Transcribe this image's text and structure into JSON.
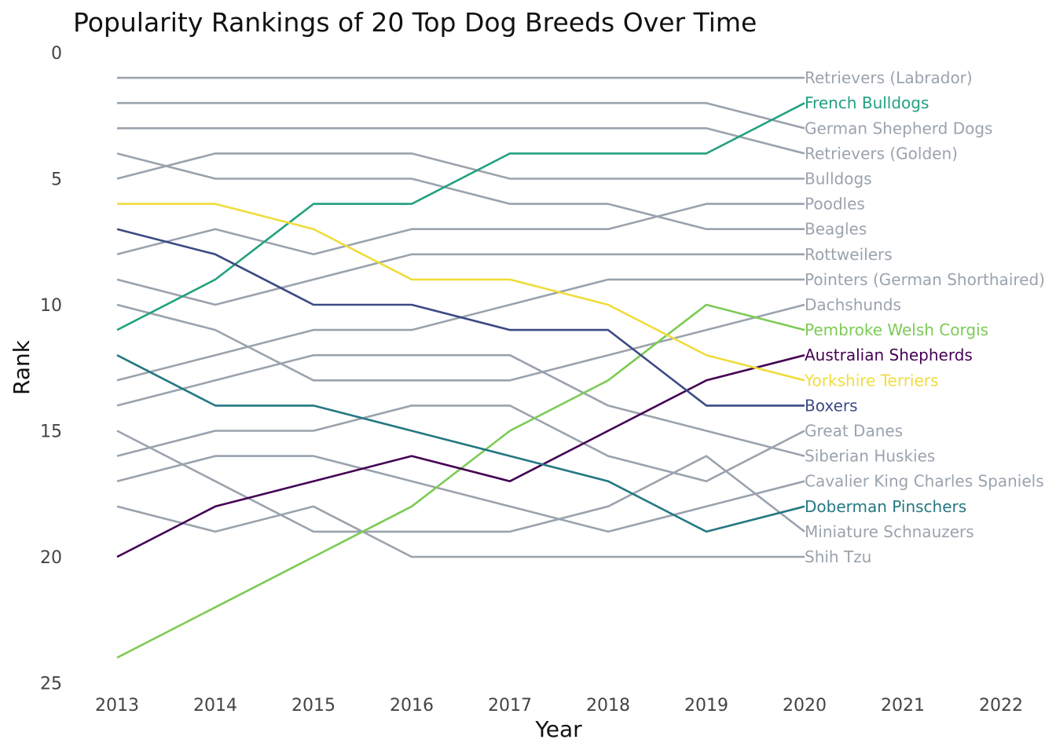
{
  "chart_data": {
    "type": "line",
    "title": "Popularity Rankings of 20 Top Dog Breeds Over Time",
    "xlabel": "Year",
    "ylabel": "Rank",
    "x": [
      2013,
      2014,
      2015,
      2016,
      2017,
      2018,
      2019,
      2020
    ],
    "x_ticks": [
      "2013",
      "2014",
      "2015",
      "2016",
      "2017",
      "2018",
      "2019",
      "2020",
      "2021",
      "2022"
    ],
    "y_ticks": [
      "0",
      "5",
      "10",
      "15",
      "20",
      "25"
    ],
    "xlim": [
      2013,
      2022
    ],
    "ylim": [
      0,
      25
    ],
    "y_reversed": true,
    "grid": false,
    "legend": "direct labels at right end of each line",
    "muted_color": "#9aa3ad",
    "series": [
      {
        "name": "Retrievers (Labrador)",
        "values": [
          1,
          1,
          1,
          1,
          1,
          1,
          1,
          1
        ],
        "color": "#9aa3ad",
        "highlight": false
      },
      {
        "name": "French Bulldogs",
        "values": [
          11,
          9,
          6,
          6,
          4,
          4,
          4,
          2
        ],
        "color": "#22a07f",
        "highlight": true
      },
      {
        "name": "German Shepherd Dogs",
        "values": [
          2,
          2,
          2,
          2,
          2,
          2,
          2,
          3
        ],
        "color": "#9aa3ad",
        "highlight": false
      },
      {
        "name": "Retrievers (Golden)",
        "values": [
          3,
          3,
          3,
          3,
          3,
          3,
          3,
          4
        ],
        "color": "#9aa3ad",
        "highlight": false
      },
      {
        "name": "Bulldogs",
        "values": [
          5,
          4,
          4,
          4,
          5,
          5,
          5,
          5
        ],
        "color": "#9aa3ad",
        "highlight": false
      },
      {
        "name": "Poodles",
        "values": [
          8,
          7,
          8,
          7,
          7,
          7,
          6,
          6
        ],
        "color": "#9aa3ad",
        "highlight": false
      },
      {
        "name": "Beagles",
        "values": [
          4,
          5,
          5,
          5,
          6,
          6,
          7,
          7
        ],
        "color": "#9aa3ad",
        "highlight": false
      },
      {
        "name": "Rottweilers",
        "values": [
          9,
          10,
          9,
          8,
          8,
          8,
          8,
          8
        ],
        "color": "#9aa3ad",
        "highlight": false
      },
      {
        "name": "Pointers (German Shorthaired)",
        "values": [
          13,
          12,
          11,
          11,
          10,
          9,
          9,
          9
        ],
        "color": "#9aa3ad",
        "highlight": false
      },
      {
        "name": "Dachshunds",
        "values": [
          10,
          11,
          13,
          13,
          13,
          12,
          11,
          10
        ],
        "color": "#9aa3ad",
        "highlight": false
      },
      {
        "name": "Pembroke Welsh Corgis",
        "values": [
          24,
          22,
          20,
          18,
          15,
          13,
          10,
          11
        ],
        "color": "#7ccb55",
        "highlight": true
      },
      {
        "name": "Australian Shepherds",
        "values": [
          20,
          18,
          17,
          16,
          17,
          15,
          13,
          12
        ],
        "color": "#440154",
        "highlight": true
      },
      {
        "name": "Yorkshire Terriers",
        "values": [
          6,
          6,
          7,
          9,
          9,
          10,
          12,
          13
        ],
        "color": "#f0dc3a",
        "highlight": true
      },
      {
        "name": "Boxers",
        "values": [
          7,
          8,
          10,
          10,
          11,
          11,
          14,
          14
        ],
        "color": "#3b4a83",
        "highlight": true
      },
      {
        "name": "Great Danes",
        "values": [
          16,
          15,
          15,
          14,
          14,
          16,
          17,
          15
        ],
        "color": "#9aa3ad",
        "highlight": false
      },
      {
        "name": "Siberian Huskies",
        "values": [
          14,
          13,
          12,
          12,
          12,
          14,
          15,
          16
        ],
        "color": "#9aa3ad",
        "highlight": false
      },
      {
        "name": "Cavalier King Charles Spaniels",
        "values": [
          17,
          16,
          16,
          17,
          18,
          19,
          18,
          17
        ],
        "color": "#9aa3ad",
        "highlight": false
      },
      {
        "name": "Doberman Pinschers",
        "values": [
          12,
          14,
          14,
          15,
          16,
          17,
          19,
          18
        ],
        "color": "#257882",
        "highlight": true
      },
      {
        "name": "Miniature Schnauzers",
        "values": [
          15,
          17,
          19,
          19,
          19,
          18,
          16,
          19
        ],
        "color": "#9aa3ad",
        "highlight": false
      },
      {
        "name": "Shih Tzu",
        "values": [
          18,
          19,
          18,
          20,
          20,
          20,
          20,
          20
        ],
        "color": "#9aa3ad",
        "highlight": false
      }
    ]
  }
}
